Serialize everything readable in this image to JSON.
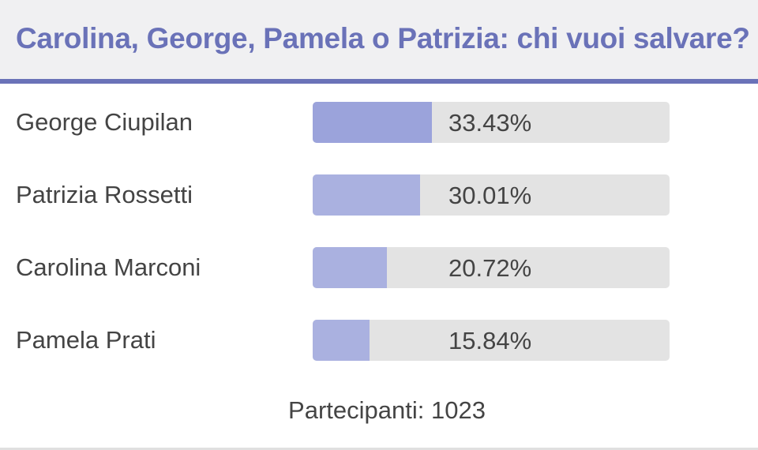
{
  "poll": {
    "title": "Carolina, George, Pamela o Patrizia: chi vuoi salvare?",
    "colors": {
      "accent": "#6a72b8",
      "bar_fill": "#aab1e0",
      "bar_fill_leader": "#9ba3db",
      "bar_track": "#e3e3e3",
      "header_bg": "#f0f0f2"
    },
    "options": [
      {
        "name": "George Ciupilan",
        "percent_label": "33.43%",
        "percent": 33.43
      },
      {
        "name": "Patrizia Rossetti",
        "percent_label": "30.01%",
        "percent": 30.01
      },
      {
        "name": "Carolina Marconi",
        "percent_label": "20.72%",
        "percent": 20.72
      },
      {
        "name": "Pamela Prati",
        "percent_label": "15.84%",
        "percent": 15.84
      }
    ],
    "participants_label": "Partecipanti: 1023"
  }
}
